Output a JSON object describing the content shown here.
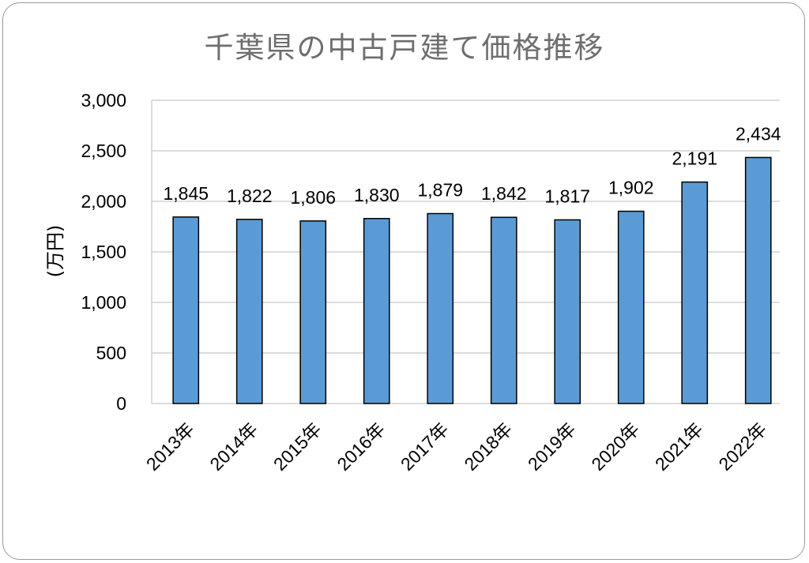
{
  "chart_data": {
    "type": "bar",
    "title": "千葉県の中古戸建て価格推移",
    "ylabel": "(万円)",
    "xlabel": "",
    "categories": [
      "2013年",
      "2014年",
      "2015年",
      "2016年",
      "2017年",
      "2018年",
      "2019年",
      "2020年",
      "2021年",
      "2022年"
    ],
    "values": [
      1845,
      1822,
      1806,
      1830,
      1879,
      1842,
      1817,
      1902,
      2191,
      2434
    ],
    "value_labels": [
      "1,845",
      "1,822",
      "1,806",
      "1,830",
      "1,879",
      "1,842",
      "1,817",
      "1,902",
      "2,191",
      "2,434"
    ],
    "ylim": [
      0,
      3000
    ],
    "yticks": [
      0,
      500,
      1000,
      1500,
      2000,
      2500,
      3000
    ],
    "ytick_labels": [
      "0",
      "500",
      "1,000",
      "1,500",
      "2,000",
      "2,500",
      "3,000"
    ],
    "grid": true,
    "legend": "none",
    "bar_color": "#5b9bd5"
  }
}
